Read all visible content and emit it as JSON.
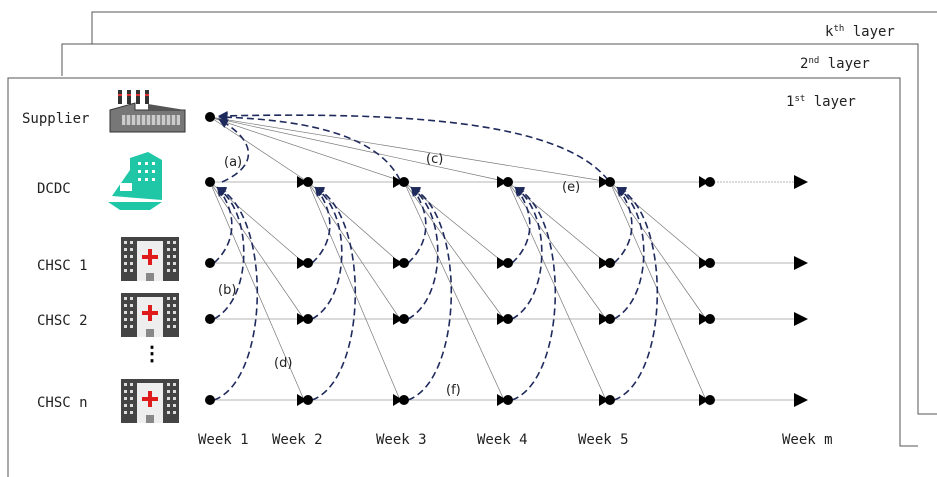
{
  "layers": {
    "k_base": "k",
    "k_sup": "th",
    "k_rest": " layer",
    "second_base": "2",
    "second_sup": "nd",
    "second_rest": " layer",
    "first_base": "1",
    "first_sup": "st",
    "first_rest": " layer"
  },
  "rows": {
    "supplier": "Supplier",
    "dcdc": "DCDC",
    "chsc1": "CHSC 1",
    "chsc2": "CHSC 2",
    "chscn": "CHSC n",
    "ellipsis": "⋮"
  },
  "weeks": [
    "Week 1",
    "Week 2",
    "Week 3",
    "Week 4",
    "Week 5",
    "Week m"
  ],
  "flow_labels": {
    "a": "(a)",
    "b": "(b)",
    "c": "(c)",
    "d": "(d)",
    "e": "(e)",
    "f": "(f)"
  },
  "colors": {
    "dashed_flow": "#1f2a5c",
    "node": "#000000",
    "thin_line": "#7a7a7a",
    "dcdc_icon": "#1fc7a6",
    "hospital_cross": "#e01b1b"
  },
  "icons": {
    "supplier": "factory-icon",
    "dcdc": "distribution-center-icon",
    "chsc": "hospital-icon"
  }
}
